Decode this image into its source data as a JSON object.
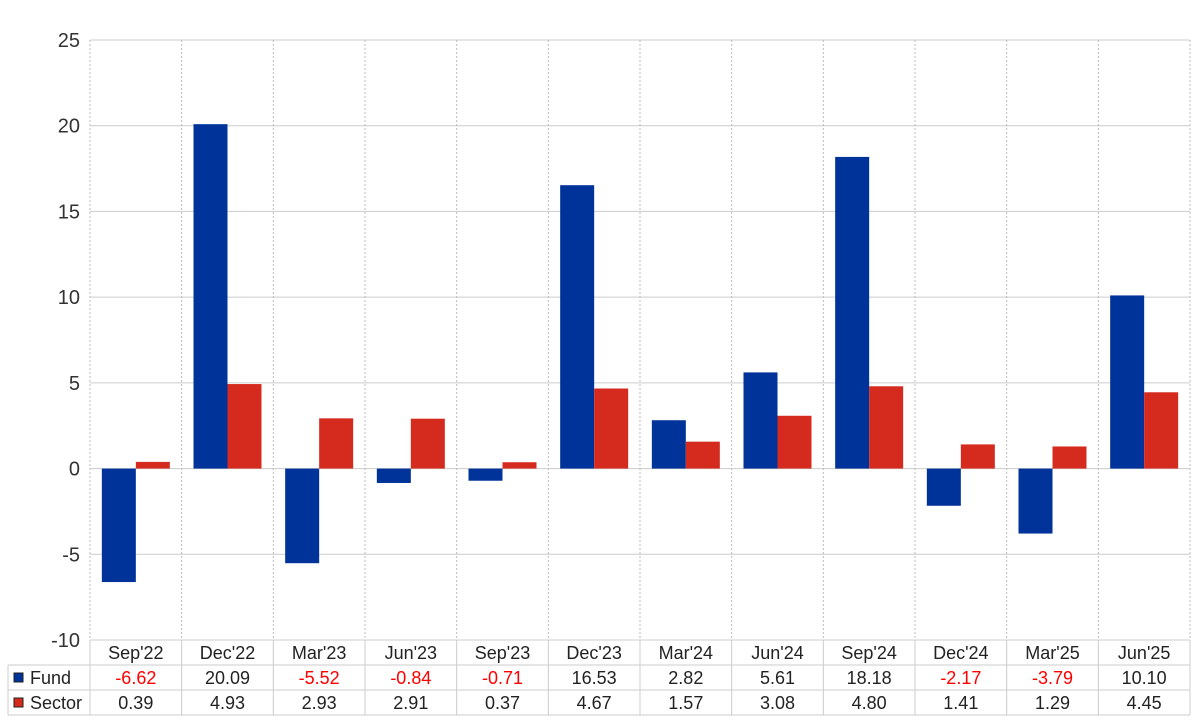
{
  "chart_data": {
    "type": "bar",
    "categories": [
      "Sep'22",
      "Dec'22",
      "Mar'23",
      "Jun'23",
      "Sep'23",
      "Dec'23",
      "Mar'24",
      "Jun'24",
      "Sep'24",
      "Dec'24",
      "Mar'25",
      "Jun'25"
    ],
    "series": [
      {
        "name": "Fund",
        "color": "#003399",
        "values": [
          -6.62,
          20.09,
          -5.52,
          -0.84,
          -0.71,
          16.53,
          2.82,
          5.61,
          18.18,
          -2.17,
          -3.79,
          10.1
        ],
        "labels": [
          "-6.62",
          "20.09",
          "-5.52",
          "-0.84",
          "-0.71",
          "16.53",
          "2.82",
          "5.61",
          "18.18",
          "-2.17",
          "-3.79",
          "10.10"
        ]
      },
      {
        "name": "Sector",
        "color": "#d52b1e",
        "values": [
          0.39,
          4.93,
          2.93,
          2.91,
          0.37,
          4.67,
          1.57,
          3.08,
          4.8,
          1.41,
          1.29,
          4.45
        ],
        "labels": [
          "0.39",
          "4.93",
          "2.93",
          "2.91",
          "0.37",
          "4.67",
          "1.57",
          "3.08",
          "4.80",
          "1.41",
          "1.29",
          "4.45"
        ]
      }
    ],
    "ylim": [
      -10,
      25
    ],
    "yticks": [
      "-10",
      "-5",
      "0",
      "5",
      "10",
      "15",
      "20",
      "25"
    ],
    "grid": true,
    "legend": "data table below chart",
    "negative_value_color": "#ff0000"
  }
}
